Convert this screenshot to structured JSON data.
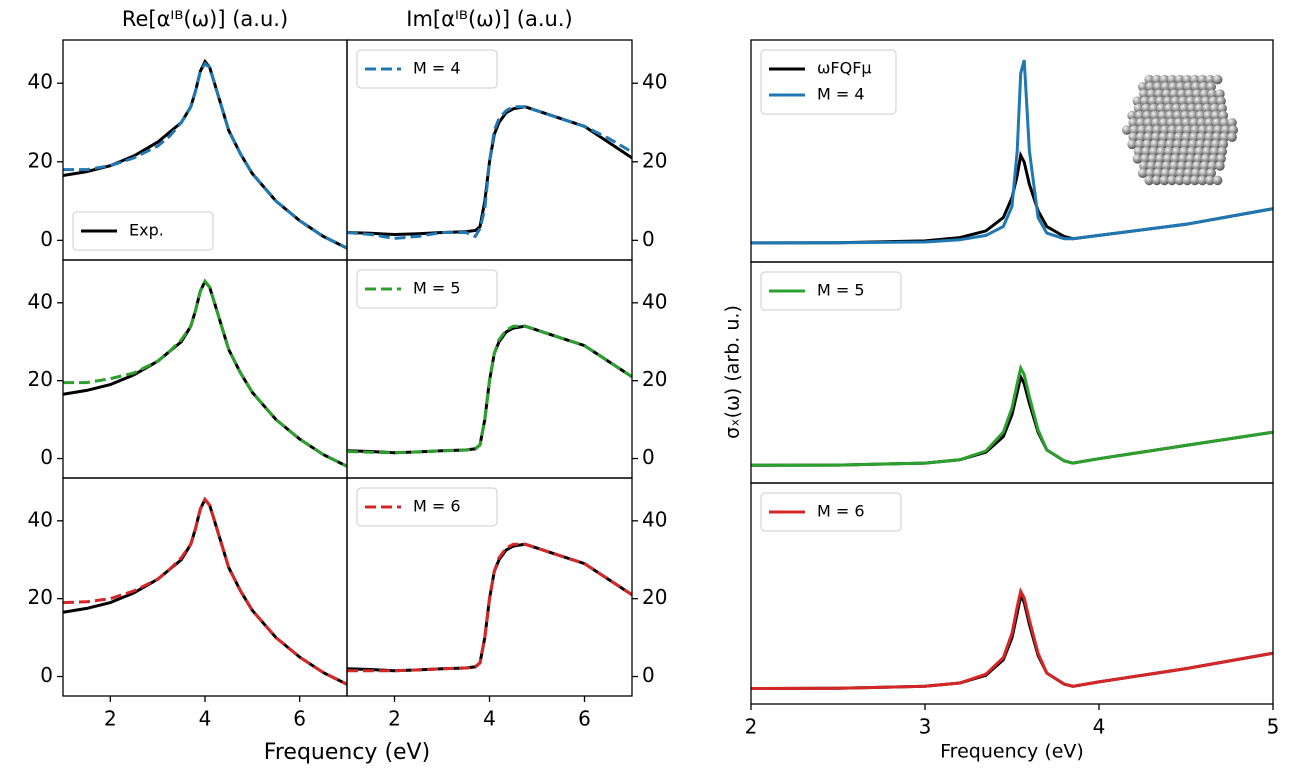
{
  "chart_data": [
    {
      "type": "line",
      "title": "Re[αᴵᴮ(ω)] (a.u.)",
      "legend": "lower left",
      "yaxis": "left",
      "x": [
        1,
        1.5,
        2,
        2.5,
        3,
        3.25,
        3.5,
        3.7,
        3.8,
        3.9,
        4,
        4.1,
        4.2,
        4.35,
        4.5,
        4.75,
        5,
        5.5,
        6,
        6.5,
        7
      ],
      "xlim": [
        1,
        7
      ],
      "ylim": [
        -5,
        51
      ],
      "yticks": [
        0,
        20,
        40
      ],
      "series": [
        {
          "name": "Exp.",
          "color": "#000000",
          "dashed": false,
          "values": [
            16.5,
            17.5,
            19,
            21.5,
            25,
            27.5,
            30,
            34,
            38,
            43,
            45.5,
            44,
            40,
            34,
            28,
            22,
            17,
            10,
            5,
            1,
            -2
          ]
        },
        {
          "color": "#1f77b4",
          "dashed": true,
          "values": [
            18,
            18,
            19,
            21,
            24,
            26.5,
            30,
            34,
            38,
            43,
            45,
            44,
            40,
            34,
            28,
            22,
            17,
            10,
            5,
            1,
            -2
          ]
        }
      ]
    },
    {
      "type": "line",
      "title": "Im[αᴵᴮ(ω)] (a.u.)",
      "legend": "upper left",
      "yaxis": "right",
      "x": [
        1,
        1.5,
        2,
        2.5,
        3,
        3.25,
        3.5,
        3.7,
        3.8,
        3.9,
        4,
        4.1,
        4.2,
        4.35,
        4.5,
        4.75,
        5,
        5.5,
        6,
        6.5,
        7
      ],
      "xlim": [
        1,
        7
      ],
      "ylim": [
        -5,
        51
      ],
      "yticks": [
        0,
        20,
        40
      ],
      "series": [
        {
          "color": "#000000",
          "dashed": false,
          "values": [
            2,
            1.8,
            1.5,
            1.7,
            2,
            2.1,
            2.2,
            2.5,
            3.5,
            10,
            20,
            27,
            30,
            32.5,
            33.5,
            34,
            33,
            31,
            29,
            25,
            21
          ]
        },
        {
          "name": "M = 4",
          "color": "#1f77b4",
          "dashed": true,
          "values": [
            2,
            1.5,
            0.5,
            1,
            2,
            2,
            2,
            1,
            3,
            8,
            20,
            28,
            31,
            33,
            34,
            34,
            33,
            31,
            29,
            26,
            22.5
          ]
        }
      ]
    },
    {
      "type": "line",
      "yaxis": "left",
      "x": [
        1,
        1.5,
        2,
        2.5,
        3,
        3.25,
        3.5,
        3.7,
        3.8,
        3.9,
        4,
        4.1,
        4.2,
        4.35,
        4.5,
        4.75,
        5,
        5.5,
        6,
        6.5,
        7
      ],
      "xlim": [
        1,
        7
      ],
      "ylim": [
        -5,
        51
      ],
      "yticks": [
        0,
        20,
        40
      ],
      "series": [
        {
          "color": "#000000",
          "dashed": false,
          "values": [
            16.5,
            17.5,
            19,
            21.5,
            25,
            27.5,
            30,
            34,
            38,
            43,
            45.5,
            44,
            40,
            34,
            28,
            22,
            17,
            10,
            5,
            1,
            -2
          ]
        },
        {
          "color": "#2ca02c",
          "dashed": true,
          "values": [
            19.5,
            19.5,
            20.5,
            22,
            25,
            27.5,
            30.5,
            34,
            38,
            43,
            45.5,
            44,
            40,
            34,
            28,
            22,
            17,
            10,
            5,
            1,
            -2
          ]
        }
      ]
    },
    {
      "type": "line",
      "legend": "upper left",
      "yaxis": "right",
      "x": [
        1,
        1.5,
        2,
        2.5,
        3,
        3.25,
        3.5,
        3.7,
        3.8,
        3.9,
        4,
        4.1,
        4.2,
        4.35,
        4.5,
        4.75,
        5,
        5.5,
        6,
        6.5,
        7
      ],
      "xlim": [
        1,
        7
      ],
      "ylim": [
        -5,
        51
      ],
      "yticks": [
        0,
        20,
        40
      ],
      "series": [
        {
          "color": "#000000",
          "dashed": false,
          "values": [
            2,
            1.8,
            1.5,
            1.7,
            2,
            2.1,
            2.2,
            2.5,
            3.5,
            10,
            20,
            27,
            30,
            32.5,
            33.5,
            34,
            33,
            31,
            29,
            25,
            21
          ]
        },
        {
          "name": "M = 5",
          "color": "#2ca02c",
          "dashed": true,
          "values": [
            1.8,
            1.6,
            1.5,
            1.7,
            2,
            2.1,
            2.2,
            2.4,
            3.5,
            10,
            20,
            27,
            30.5,
            33,
            34,
            34,
            33,
            31,
            29,
            25,
            21
          ]
        }
      ]
    },
    {
      "type": "line",
      "yaxis": "left",
      "xlabel": "Frequency (eV)",
      "x": [
        1,
        1.5,
        2,
        2.5,
        3,
        3.25,
        3.5,
        3.7,
        3.8,
        3.9,
        4,
        4.1,
        4.2,
        4.35,
        4.5,
        4.75,
        5,
        5.5,
        6,
        6.5,
        7
      ],
      "xlim": [
        1,
        7
      ],
      "xticks": [
        2,
        4,
        6
      ],
      "ylim": [
        -5,
        51
      ],
      "yticks": [
        0,
        20,
        40
      ],
      "series": [
        {
          "color": "#000000",
          "dashed": false,
          "values": [
            16.5,
            17.5,
            19,
            21.5,
            25,
            27.5,
            30,
            34,
            38,
            43,
            45.5,
            44,
            40,
            34,
            28,
            22,
            17,
            10,
            5,
            1,
            -2
          ]
        },
        {
          "color": "#d62728",
          "dashed": true,
          "values": [
            19,
            19.2,
            20,
            22,
            25,
            27.5,
            30.5,
            34,
            38,
            43,
            45.5,
            44,
            40,
            34,
            28,
            22,
            17,
            10,
            5,
            1,
            -2
          ]
        }
      ]
    },
    {
      "type": "line",
      "legend": "upper left",
      "yaxis": "right",
      "x": [
        1,
        1.5,
        2,
        2.5,
        3,
        3.25,
        3.5,
        3.7,
        3.8,
        3.9,
        4,
        4.1,
        4.2,
        4.35,
        4.5,
        4.75,
        5,
        5.5,
        6,
        6.5,
        7
      ],
      "xlim": [
        1,
        7
      ],
      "xticks": [
        2,
        4,
        6
      ],
      "ylim": [
        -5,
        51
      ],
      "yticks": [
        0,
        20,
        40
      ],
      "series": [
        {
          "color": "#000000",
          "dashed": false,
          "values": [
            2,
            1.8,
            1.5,
            1.7,
            2,
            2.1,
            2.2,
            2.5,
            3.5,
            10,
            20,
            27,
            30,
            32.5,
            33.5,
            34,
            33,
            31,
            29,
            25,
            21
          ]
        },
        {
          "name": "M = 6",
          "color": "#d62728",
          "dashed": true,
          "values": [
            1.5,
            1.5,
            1.5,
            1.7,
            2,
            2.1,
            2.2,
            2.4,
            3.5,
            10,
            20,
            27,
            30.5,
            33,
            34,
            34,
            33,
            31,
            29,
            25,
            21
          ]
        }
      ]
    },
    {
      "type": "line",
      "legend": "upper left",
      "x": [
        2,
        2.5,
        3,
        3.2,
        3.35,
        3.45,
        3.5,
        3.53,
        3.55,
        3.57,
        3.6,
        3.65,
        3.7,
        3.8,
        3.85,
        4,
        4.5,
        5
      ],
      "xlim": [
        2,
        5
      ],
      "ylim": [
        0,
        10
      ],
      "series": [
        {
          "name": "ωFQFμ",
          "color": "#000000",
          "dashed": false,
          "values": [
            0.86,
            0.87,
            0.95,
            1.1,
            1.4,
            2.0,
            2.9,
            3.9,
            4.8,
            4.5,
            3.5,
            2.3,
            1.6,
            1.15,
            1.05,
            1.2,
            1.7,
            2.4
          ]
        },
        {
          "name": "M = 4",
          "color": "#1f77b4",
          "dashed": false,
          "values": [
            0.86,
            0.87,
            0.9,
            1.0,
            1.2,
            1.6,
            2.5,
            5,
            8.5,
            9.1,
            5,
            2,
            1.3,
            1.05,
            1.05,
            1.2,
            1.7,
            2.4
          ]
        }
      ]
    },
    {
      "type": "line",
      "legend": "upper left",
      "ylabel": "σₓ(ω) (arb. u.)",
      "x": [
        2,
        2.5,
        3,
        3.2,
        3.35,
        3.45,
        3.5,
        3.53,
        3.55,
        3.57,
        3.6,
        3.65,
        3.7,
        3.8,
        3.85,
        4,
        4.5,
        5
      ],
      "xlim": [
        2,
        5
      ],
      "ylim": [
        0,
        10
      ],
      "series": [
        {
          "color": "#000000",
          "dashed": false,
          "values": [
            0.8,
            0.81,
            0.9,
            1.05,
            1.4,
            2.1,
            3.1,
            4.1,
            4.8,
            4.5,
            3.6,
            2.3,
            1.5,
            1.0,
            0.9,
            1.1,
            1.7,
            2.3
          ]
        },
        {
          "name": "M = 5",
          "color": "#2ca02c",
          "dashed": false,
          "values": [
            0.8,
            0.81,
            0.9,
            1.05,
            1.45,
            2.3,
            3.4,
            4.5,
            5.2,
            4.9,
            3.9,
            2.4,
            1.5,
            1.0,
            0.9,
            1.1,
            1.7,
            2.3
          ]
        }
      ]
    },
    {
      "type": "line",
      "legend": "upper left",
      "xlabel": "Frequency (eV)",
      "x": [
        2,
        2.5,
        3,
        3.2,
        3.35,
        3.45,
        3.5,
        3.53,
        3.55,
        3.57,
        3.6,
        3.65,
        3.7,
        3.8,
        3.85,
        4,
        4.5,
        5
      ],
      "xlim": [
        2,
        5
      ],
      "xticks": [
        2,
        3,
        4,
        5
      ],
      "ylim": [
        0,
        10
      ],
      "series": [
        {
          "color": "#000000",
          "dashed": false,
          "values": [
            0.7,
            0.71,
            0.8,
            0.95,
            1.3,
            2.0,
            3.0,
            4.1,
            4.9,
            4.6,
            3.6,
            2.2,
            1.4,
            0.9,
            0.8,
            1.0,
            1.6,
            2.3
          ]
        },
        {
          "name": "M = 6",
          "color": "#d62728",
          "dashed": false,
          "values": [
            0.7,
            0.71,
            0.8,
            0.95,
            1.35,
            2.1,
            3.2,
            4.4,
            5.1,
            4.8,
            3.8,
            2.3,
            1.4,
            0.9,
            0.8,
            1.0,
            1.6,
            2.3
          ]
        }
      ]
    }
  ]
}
